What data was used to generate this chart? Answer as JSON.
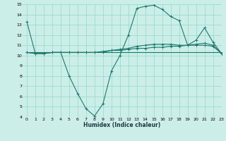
{
  "xlabel": "Humidex (Indice chaleur)",
  "bg_color": "#cceee8",
  "grid_color": "#99ddcc",
  "line_color": "#1a7a6e",
  "xlim": [
    -0.5,
    23
  ],
  "ylim": [
    4,
    15
  ],
  "yticks": [
    4,
    5,
    6,
    7,
    8,
    9,
    10,
    11,
    12,
    13,
    14,
    15
  ],
  "xticks": [
    0,
    1,
    2,
    3,
    4,
    5,
    6,
    7,
    8,
    9,
    10,
    11,
    12,
    13,
    14,
    15,
    16,
    17,
    18,
    19,
    20,
    21,
    22,
    23
  ],
  "line1_x": [
    0,
    1,
    2,
    3,
    4,
    5,
    6,
    7,
    8,
    9,
    10,
    11,
    12,
    13,
    14,
    15,
    16,
    17,
    18,
    19,
    20,
    21,
    22,
    23
  ],
  "line1_y": [
    13.3,
    10.2,
    10.2,
    10.3,
    10.3,
    8.0,
    6.3,
    4.8,
    4.1,
    5.3,
    8.5,
    10.0,
    12.0,
    14.6,
    14.8,
    14.9,
    14.5,
    13.8,
    13.4,
    11.0,
    11.5,
    12.7,
    11.3,
    10.2
  ],
  "line2_x": [
    0,
    1,
    2,
    3,
    4,
    5,
    6,
    7,
    8,
    9,
    10,
    11,
    12,
    13,
    14,
    15,
    16,
    17,
    18,
    19,
    20,
    21,
    22,
    23
  ],
  "line2_y": [
    10.3,
    10.2,
    10.2,
    10.3,
    10.3,
    10.3,
    10.3,
    10.3,
    10.3,
    10.3,
    10.5,
    10.6,
    10.7,
    10.9,
    11.0,
    11.1,
    11.1,
    11.1,
    11.0,
    11.0,
    11.0,
    11.0,
    10.9,
    10.2
  ],
  "line3_x": [
    0,
    23
  ],
  "line3_y": [
    10.3,
    10.3
  ],
  "line4_x": [
    0,
    1,
    2,
    3,
    4,
    5,
    6,
    7,
    8,
    9,
    10,
    11,
    12,
    13,
    14,
    15,
    16,
    17,
    18,
    19,
    20,
    21,
    22,
    23
  ],
  "line4_y": [
    10.3,
    10.2,
    10.2,
    10.3,
    10.3,
    10.3,
    10.3,
    10.3,
    10.3,
    10.4,
    10.5,
    10.5,
    10.6,
    10.7,
    10.7,
    10.8,
    10.8,
    10.9,
    10.9,
    11.0,
    11.1,
    11.2,
    11.0,
    10.2
  ]
}
